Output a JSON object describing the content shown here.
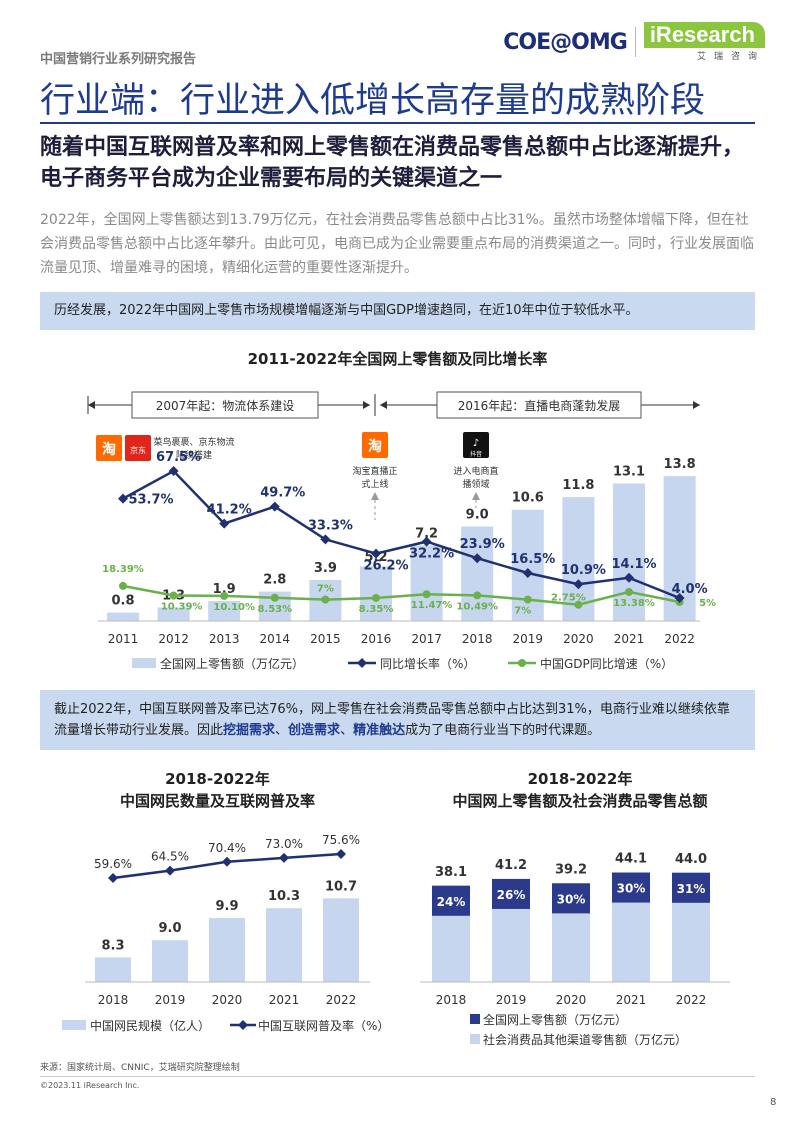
{
  "header": {
    "series_label": "中国营销行业系列研究报告",
    "logo_coe": "COE@OMG",
    "logo_ir": "iResearch",
    "logo_ir_sub": "艾瑞咨询",
    "main_title": "行业端：行业进入低增长高存量的成熟阶段",
    "sub_title": "随着中国互联网普及率和网上零售额在消费品零售总额中占比逐渐提升，电子商务平台成为企业需要布局的关键渠道之一",
    "intro": "2022年，全国网上零售额达到13.79万亿元，在社会消费品零售总额中占比31%。虽然市场整体增幅下降，但在社会消费品零售总额中占比逐年攀升。由此可见，电商已成为企业需要重点布局的消费渠道之一。同时，行业发展面临流量见顶、增量难寻的困境，精细化运营的重要性逐渐提升。"
  },
  "box1": "历经发展，2022年中国网上零售市场规模增幅逐渐与中国GDP增速趋同，在近10年中位于较低水平。",
  "box2": {
    "part1": "截止2022年，中国互联网普及率已达76%，网上零售在社会消费品零售总额中占比达到31%，电商行业难以继续依靠流量增长带动行业发展。因此",
    "bold1": "挖掘需求",
    "sep1": "、",
    "bold2": "创造需求",
    "sep2": "、",
    "bold3": "精准触达",
    "part2": "成为了电商行业当下的时代课题。"
  },
  "annotations": {
    "period1": "2007年起：物流体系建设",
    "period2": "2016年起：直播电商蓬勃发展",
    "logistics_line1": "菜鸟裹裹、京东物流",
    "logistics_line2": "陆续搭建",
    "taobao_line1": "淘宝直播正",
    "taobao_line2": "式上线",
    "douyin_line1": "进入电商直",
    "douyin_line2": "播领域",
    "icon_tao": "淘",
    "icon_jd": "京东",
    "icon_douyin": "抖音"
  },
  "chart_data": [
    {
      "type": "bar",
      "title": "2011-2022年全国网上零售额及同比增长率",
      "categories": [
        "2011",
        "2012",
        "2013",
        "2014",
        "2015",
        "2016",
        "2017",
        "2018",
        "2019",
        "2020",
        "2021",
        "2022"
      ],
      "series": [
        {
          "name": "全国网上零售额（万亿元）",
          "type": "bar",
          "values": [
            0.8,
            1.3,
            1.9,
            2.8,
            3.9,
            5.2,
            7.2,
            9.0,
            10.6,
            11.8,
            13.1,
            13.8
          ],
          "labels": [
            "0.8",
            "1.3",
            "1.9",
            "2.8",
            "3.9",
            "5.2",
            "7.2",
            "9.0",
            "10.6",
            "11.8",
            "13.1",
            "13.8"
          ],
          "color": "#c5d6ee"
        },
        {
          "name": "同比增长率（%）",
          "type": "line",
          "values": [
            53.7,
            67.5,
            41.2,
            49.7,
            33.3,
            26.2,
            32.2,
            23.9,
            16.5,
            10.9,
            14.1,
            4.0
          ],
          "labels": [
            "53.7%",
            "67.5%",
            "41.2%",
            "49.7%",
            "33.3%",
            "26.2%",
            "32.2%",
            "23.9%",
            "16.5%",
            "10.9%",
            "14.1%",
            "4.0%"
          ],
          "color": "#1f3170"
        },
        {
          "name": "中国GDP同比增速（%）",
          "type": "line",
          "values": [
            18.39,
            10.39,
            10.1,
            8.53,
            7,
            8.35,
            11.47,
            10.49,
            7,
            2.75,
            13.38,
            5
          ],
          "labels": [
            "18.39%",
            "10.39%",
            "10.10%",
            "8.53%",
            "7%",
            "8.35%",
            "11.47%",
            "10.49%",
            "7%",
            "2.75%",
            "13.38%",
            "5%"
          ],
          "color": "#6ab04c"
        }
      ],
      "legend": "bottom"
    },
    {
      "type": "bar",
      "title_line1": "2018-2022年",
      "title_line2": "中国网民数量及互联网普及率",
      "categories": [
        "2018",
        "2019",
        "2020",
        "2021",
        "2022"
      ],
      "series": [
        {
          "name": "中国网民规模（亿人）",
          "type": "bar",
          "values": [
            8.3,
            9.0,
            9.9,
            10.3,
            10.7
          ],
          "labels": [
            "8.3",
            "9.0",
            "9.9",
            "10.3",
            "10.7"
          ],
          "color": "#c5d6ee"
        },
        {
          "name": "中国互联网普及率（%）",
          "type": "line",
          "values": [
            59.6,
            64.5,
            70.4,
            73.0,
            75.6
          ],
          "labels": [
            "59.6%",
            "64.5%",
            "70.4%",
            "73.0%",
            "75.6%"
          ],
          "color": "#1f3170"
        }
      ],
      "legend": "bottom"
    },
    {
      "type": "bar",
      "title_line1": "2018-2022年",
      "title_line2": "中国网上零售额及社会消费品零售总额",
      "categories": [
        "2018",
        "2019",
        "2020",
        "2021",
        "2022"
      ],
      "series": [
        {
          "name": "全国网上零售额（万亿元）",
          "type": "bar",
          "share_labels": [
            "24%",
            "26%",
            "30%",
            "30%",
            "31%"
          ],
          "shares": [
            0.24,
            0.26,
            0.3,
            0.3,
            0.31
          ],
          "color": "#2c3a8c"
        },
        {
          "name": "社会消费品其他渠道零售额（万亿元）",
          "type": "bar",
          "color": "#c5d6ee"
        }
      ],
      "totals": [
        38.1,
        41.2,
        39.2,
        44.1,
        44.0
      ],
      "total_labels": [
        "38.1",
        "41.2",
        "39.2",
        "44.1",
        "44.0"
      ],
      "stacked": true,
      "legend": "bottom"
    }
  ],
  "footer": {
    "source": "来源：国家统计局、CNNIC，艾瑞研究院整理绘制",
    "copyright": "©2023.11 iResearch Inc.",
    "page": "8"
  }
}
